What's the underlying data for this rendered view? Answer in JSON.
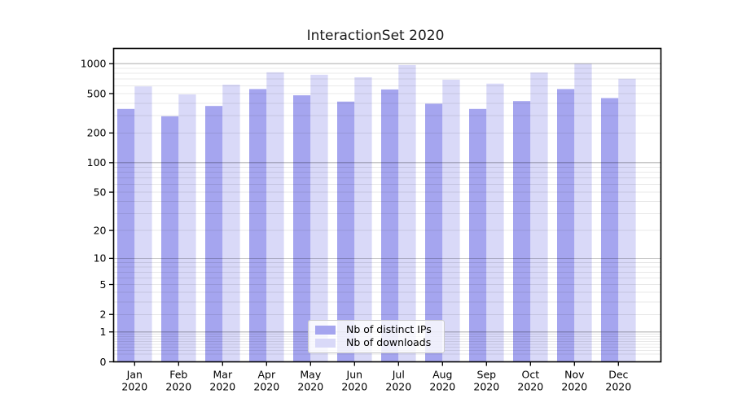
{
  "figure": {
    "title": "InteractionSet 2020",
    "background": "#ffffff"
  },
  "chart_data": {
    "type": "bar",
    "title": "InteractionSet 2020",
    "categories": [
      "Jan",
      "Feb",
      "Mar",
      "Apr",
      "May",
      "Jun",
      "Jul",
      "Aug",
      "Sep",
      "Oct",
      "Nov",
      "Dec"
    ],
    "x_tick_second_line": "2020",
    "series": [
      {
        "name": "Nb of distinct IPs",
        "color": "#a5a5ef",
        "values": [
          350,
          295,
          375,
          555,
          480,
          415,
          550,
          395,
          350,
          420,
          555,
          450
        ]
      },
      {
        "name": "Nb of downloads",
        "color": "#d9d9f8",
        "values": [
          590,
          490,
          615,
          820,
          775,
          730,
          970,
          690,
          630,
          815,
          1000,
          705
        ]
      }
    ],
    "yscale": "symlog-ln(1+v)",
    "ylim": [
      0,
      1425
    ],
    "yticks": [
      0,
      1,
      2,
      5,
      10,
      20,
      50,
      100,
      200,
      500,
      1000
    ],
    "ytick_labels": [
      "0",
      "1",
      "2",
      "5",
      "10",
      "20",
      "50",
      "100",
      "200",
      "500",
      "1000"
    ],
    "grid": true,
    "legend_position": "inside-bottom-center",
    "colors": {
      "axis": "#000000",
      "grid_major": "rgba(0,0,0,0.22)",
      "grid_minor": "rgba(0,0,0,0.09)",
      "tick_text": "#000000"
    }
  }
}
